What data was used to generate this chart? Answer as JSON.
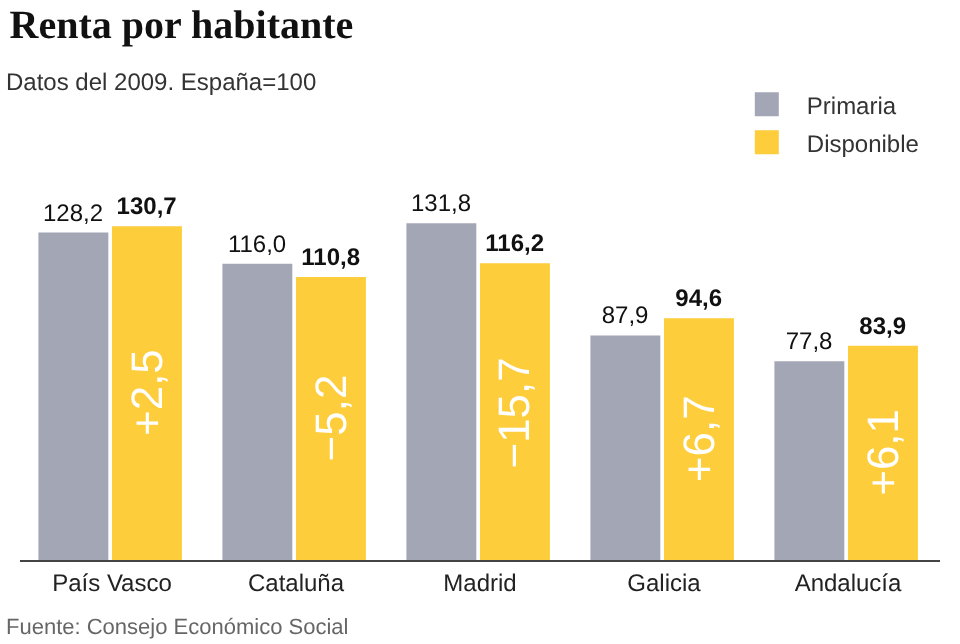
{
  "chart_data": {
    "type": "bar",
    "title": "Renta por habitante",
    "subtitle": "Datos del 2009. España=100",
    "categories": [
      "País Vasco",
      "Cataluña",
      "Madrid",
      "Galicia",
      "Andalucía"
    ],
    "series": [
      {
        "name": "Primaria",
        "color": "#a3a6b4",
        "values": [
          128.2,
          116.0,
          131.8,
          87.9,
          77.8
        ],
        "value_labels": [
          "128,2",
          "116,0",
          "131,8",
          "87,9",
          "77,8"
        ]
      },
      {
        "name": "Disponible",
        "color": "#fdcd3b",
        "values": [
          130.7,
          110.8,
          116.2,
          94.6,
          83.9
        ],
        "value_labels": [
          "130,7",
          "110,8",
          "116,2",
          "94,6",
          "83,9"
        ]
      }
    ],
    "annotations": [
      {
        "text": "+2,5",
        "x": "País Vasco"
      },
      {
        "text": "−5,2",
        "x": "Cataluña"
      },
      {
        "text": "−15,7",
        "x": "Madrid"
      },
      {
        "text": "+6,7",
        "x": "Galicia"
      },
      {
        "text": "+6,1",
        "x": "Andalucía"
      },
      "Fuente: Consejo Económico Social"
    ],
    "legend": "top right",
    "grid": false
  }
}
